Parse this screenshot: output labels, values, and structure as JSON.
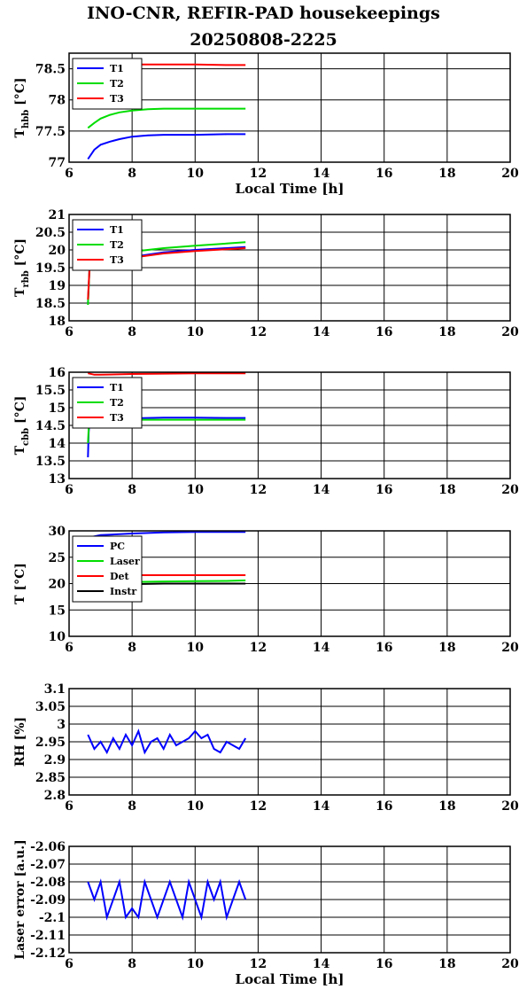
{
  "figure": {
    "title_line1": "INO-CNR, REFIR-PAD housekeepings",
    "title_line2": "20250808-2225"
  },
  "chart_data": [
    {
      "type": "line",
      "ylabel": "T_hbb [°C]",
      "xlabel": "Local Time [h]",
      "xlim": [
        6,
        20
      ],
      "ylim": [
        77,
        78.75
      ],
      "xticks": [
        6,
        8,
        10,
        12,
        14,
        16,
        18,
        20
      ],
      "yticks": [
        77,
        77.5,
        78,
        78.5
      ],
      "yticklabels": [
        "77",
        "77.5",
        "78",
        "78.5"
      ],
      "grid": true,
      "legend": "top-left",
      "series": [
        {
          "name": "T1",
          "color": "#0000ff",
          "x": [
            6.6,
            6.8,
            7.0,
            7.3,
            7.6,
            8.0,
            8.5,
            9.0,
            10.0,
            11.0,
            11.6
          ],
          "y": [
            77.05,
            77.2,
            77.28,
            77.33,
            77.37,
            77.41,
            77.43,
            77.44,
            77.44,
            77.45,
            77.45
          ]
        },
        {
          "name": "T2",
          "color": "#00dd00",
          "x": [
            6.6,
            6.8,
            7.0,
            7.3,
            7.6,
            8.0,
            8.5,
            9.0,
            10.0,
            11.0,
            11.6
          ],
          "y": [
            77.55,
            77.63,
            77.7,
            77.76,
            77.8,
            77.83,
            77.85,
            77.86,
            77.86,
            77.86,
            77.86
          ]
        },
        {
          "name": "T3",
          "color": "#ff0000",
          "x": [
            6.6,
            7.0,
            8.0,
            9.0,
            10.0,
            11.0,
            11.6
          ],
          "y": [
            78.55,
            78.57,
            78.57,
            78.57,
            78.57,
            78.56,
            78.56
          ]
        }
      ]
    },
    {
      "type": "line",
      "ylabel": "T_rbb [°C]",
      "xlim": [
        6,
        20
      ],
      "ylim": [
        18,
        21
      ],
      "xticks": [
        6,
        8,
        10,
        12,
        14,
        16,
        18,
        20
      ],
      "yticks": [
        18,
        18.5,
        19,
        19.5,
        20,
        20.5,
        21
      ],
      "yticklabels": [
        "18",
        "18.5",
        "19",
        "19.5",
        "20",
        "20.5",
        "21"
      ],
      "grid": true,
      "legend": "top-left",
      "series": [
        {
          "name": "T1",
          "color": "#0000ff",
          "x": [
            6.6,
            6.65,
            6.7,
            7.0,
            8.0,
            9.0,
            10.0,
            11.0,
            11.6
          ],
          "y": [
            18.5,
            19.5,
            19.55,
            19.6,
            19.8,
            19.93,
            20.0,
            20.05,
            20.08
          ]
        },
        {
          "name": "T2",
          "color": "#00dd00",
          "x": [
            6.6,
            6.65,
            6.7,
            7.0,
            8.0,
            9.0,
            10.0,
            11.0,
            11.6
          ],
          "y": [
            18.45,
            19.5,
            19.6,
            19.7,
            19.95,
            20.05,
            20.12,
            20.18,
            20.22
          ]
        },
        {
          "name": "T3",
          "color": "#ff0000",
          "x": [
            6.6,
            6.65,
            6.7,
            7.0,
            8.0,
            9.0,
            10.0,
            11.0,
            11.6
          ],
          "y": [
            18.6,
            19.5,
            19.52,
            19.57,
            19.78,
            19.9,
            19.97,
            20.02,
            20.05
          ]
        }
      ]
    },
    {
      "type": "line",
      "ylabel": "T_cbb [°C]",
      "xlim": [
        6,
        20
      ],
      "ylim": [
        13,
        16
      ],
      "xticks": [
        6,
        8,
        10,
        12,
        14,
        16,
        18,
        20
      ],
      "yticks": [
        13,
        13.5,
        14,
        14.5,
        15,
        15.5,
        16
      ],
      "yticklabels": [
        "13",
        "13.5",
        "14",
        "14.5",
        "15",
        "15.5",
        "16"
      ],
      "grid": true,
      "legend": "top-left",
      "series": [
        {
          "name": "T1",
          "color": "#0000ff",
          "x": [
            6.6,
            6.62,
            6.65,
            6.7,
            7.0,
            8.0,
            9.0,
            10.0,
            11.0,
            11.6
          ],
          "y": [
            13.6,
            14.3,
            14.6,
            14.7,
            14.7,
            14.7,
            14.72,
            14.72,
            14.71,
            14.71
          ]
        },
        {
          "name": "T2",
          "color": "#00dd00",
          "x": [
            6.6,
            6.62,
            6.65,
            6.7,
            7.0,
            8.0,
            9.0,
            10.0,
            11.0,
            11.6
          ],
          "y": [
            14.0,
            14.4,
            14.6,
            14.66,
            14.67,
            14.66,
            14.66,
            14.66,
            14.66,
            14.66
          ]
        },
        {
          "name": "T3",
          "color": "#ff0000",
          "x": [
            6.6,
            6.8,
            7.0,
            8.0,
            9.0,
            10.0,
            11.0,
            11.6
          ],
          "y": [
            15.97,
            15.93,
            15.93,
            15.95,
            15.96,
            15.97,
            15.97,
            15.97
          ]
        }
      ]
    },
    {
      "type": "line",
      "ylabel": "T [°C]",
      "xlim": [
        6,
        20
      ],
      "ylim": [
        10,
        30
      ],
      "xticks": [
        6,
        8,
        10,
        12,
        14,
        16,
        18,
        20
      ],
      "yticks": [
        10,
        15,
        20,
        25,
        30
      ],
      "yticklabels": [
        "10",
        "15",
        "20",
        "25",
        "30"
      ],
      "grid": true,
      "legend": "top-left",
      "series": [
        {
          "name": "PC",
          "color": "#0000ff",
          "x": [
            6.6,
            7.0,
            8.0,
            9.0,
            10.0,
            11.0,
            11.6
          ],
          "y": [
            28.7,
            29.2,
            29.5,
            29.7,
            29.8,
            29.8,
            29.8
          ]
        },
        {
          "name": "Laser",
          "color": "#00dd00",
          "x": [
            6.6,
            7.0,
            8.0,
            9.0,
            10.0,
            11.0,
            11.6
          ],
          "y": [
            20.0,
            20.2,
            20.3,
            20.4,
            20.45,
            20.5,
            20.6
          ]
        },
        {
          "name": "Det",
          "color": "#ff0000",
          "x": [
            6.6,
            7.0,
            8.0,
            9.0,
            10.0,
            11.0,
            11.6
          ],
          "y": [
            21.5,
            21.6,
            21.6,
            21.6,
            21.6,
            21.6,
            21.6
          ]
        },
        {
          "name": "Instr",
          "color": "#000000",
          "x": [
            6.6,
            7.0,
            8.0,
            9.0,
            10.0,
            11.0,
            11.6
          ],
          "y": [
            19.8,
            19.9,
            19.9,
            20.0,
            20.0,
            20.0,
            20.0
          ]
        }
      ]
    },
    {
      "type": "line",
      "ylabel": "RH [%]",
      "xlim": [
        6,
        20
      ],
      "ylim": [
        2.8,
        3.1
      ],
      "xticks": [
        6,
        8,
        10,
        12,
        14,
        16,
        18,
        20
      ],
      "yticks": [
        2.8,
        2.85,
        2.9,
        2.95,
        3.0,
        3.05,
        3.1
      ],
      "yticklabels": [
        "2.8",
        "2.85",
        "2.9",
        "2.95",
        "3",
        "3.05",
        "3.1"
      ],
      "grid": true,
      "series": [
        {
          "color": "#0000ff",
          "x": [
            6.6,
            6.8,
            7.0,
            7.2,
            7.4,
            7.6,
            7.8,
            8.0,
            8.2,
            8.4,
            8.6,
            8.8,
            9.0,
            9.2,
            9.4,
            9.6,
            9.8,
            10.0,
            10.2,
            10.4,
            10.6,
            10.8,
            11.0,
            11.2,
            11.4,
            11.6
          ],
          "y": [
            2.97,
            2.93,
            2.95,
            2.92,
            2.96,
            2.93,
            2.97,
            2.94,
            2.98,
            2.92,
            2.95,
            2.96,
            2.93,
            2.97,
            2.94,
            2.95,
            2.96,
            2.98,
            2.96,
            2.97,
            2.93,
            2.92,
            2.95,
            2.94,
            2.93,
            2.96
          ]
        }
      ]
    },
    {
      "type": "line",
      "ylabel": "Laser error [a.u.]",
      "xlabel": "Local Time [h]",
      "xlim": [
        6,
        20
      ],
      "ylim": [
        -2.12,
        -2.06
      ],
      "xticks": [
        6,
        8,
        10,
        12,
        14,
        16,
        18,
        20
      ],
      "yticks": [
        -2.12,
        -2.11,
        -2.1,
        -2.09,
        -2.08,
        -2.07,
        -2.06
      ],
      "yticklabels": [
        "-2.12",
        "-2.11",
        "-2.1",
        "-2.09",
        "-2.08",
        "-2.07",
        "-2.06"
      ],
      "grid": true,
      "series": [
        {
          "color": "#0000ff",
          "x": [
            6.6,
            6.8,
            7.0,
            7.2,
            7.4,
            7.6,
            7.8,
            8.0,
            8.2,
            8.4,
            8.6,
            8.8,
            9.0,
            9.2,
            9.4,
            9.6,
            9.8,
            10.0,
            10.2,
            10.4,
            10.6,
            10.8,
            11.0,
            11.2,
            11.4,
            11.6
          ],
          "y": [
            -2.08,
            -2.09,
            -2.08,
            -2.1,
            -2.09,
            -2.08,
            -2.1,
            -2.095,
            -2.1,
            -2.08,
            -2.09,
            -2.1,
            -2.09,
            -2.08,
            -2.09,
            -2.1,
            -2.08,
            -2.09,
            -2.1,
            -2.08,
            -2.09,
            -2.08,
            -2.1,
            -2.09,
            -2.08,
            -2.09
          ]
        }
      ]
    }
  ]
}
